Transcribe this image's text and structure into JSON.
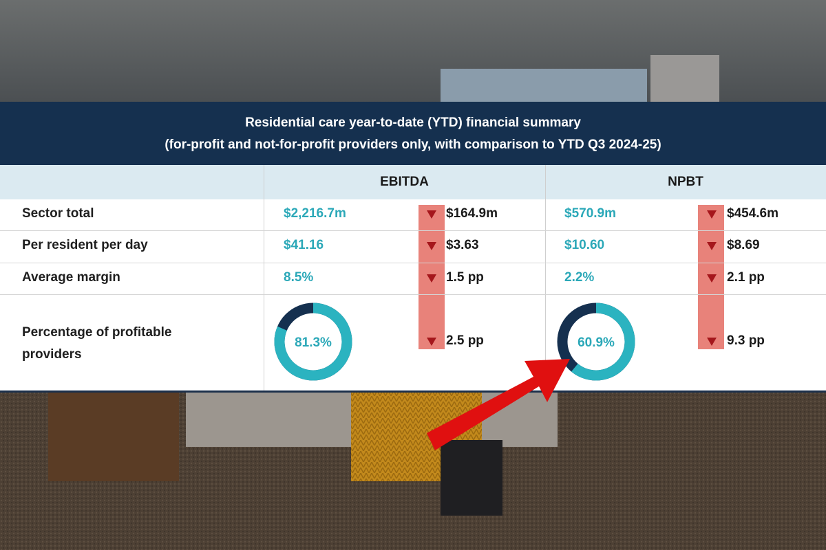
{
  "header": {
    "title": "Residential care year-to-date (YTD) financial summary",
    "subtitle": "(for-profit and not-for-profit providers only, with comparison to YTD Q3 2024-25)"
  },
  "table": {
    "columns": [
      "EBITDA",
      "NPBT"
    ],
    "rows": [
      {
        "label": "Sector total",
        "cells": [
          "$2,216.7m",
          "$164.9m",
          "$570.9m",
          "$454.6m"
        ]
      },
      {
        "label": "Per resident per day",
        "cells": [
          "$41.16",
          "$3.63",
          "$10.60",
          "$8.69"
        ]
      },
      {
        "label": "Average margin",
        "cells": [
          "8.5%",
          "1.5 pp",
          "2.2%",
          "2.1 pp"
        ]
      },
      {
        "label": "Percentage of profitable providers",
        "cells": [
          {
            "value": 81.3,
            "label": "81.3%"
          },
          "2.5 pp",
          {
            "value": 60.9,
            "label": "60.9%"
          },
          "9.3 pp"
        ]
      }
    ]
  }
}
